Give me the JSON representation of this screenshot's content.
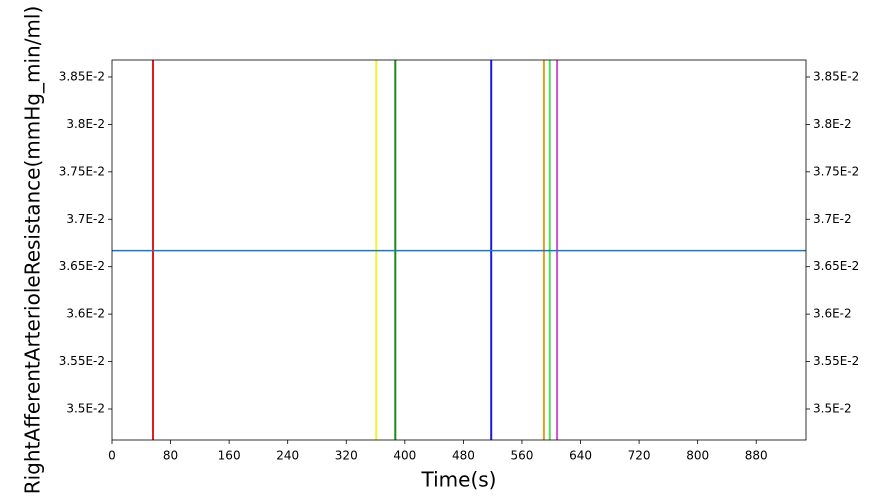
{
  "chart_data": {
    "type": "line",
    "xlabel": "Time(s)",
    "ylabel": "RightAfferentArterioleResistance(mmHg_min/ml)",
    "xlim": [
      0,
      948
    ],
    "xticks": [
      0,
      80,
      160,
      240,
      320,
      400,
      480,
      560,
      640,
      720,
      800,
      880
    ],
    "ylim": [
      0.034673,
      0.038679
    ],
    "yticks": [
      {
        "value": 0.035,
        "label": "3.5E-2"
      },
      {
        "value": 0.0355,
        "label": "3.55E-2"
      },
      {
        "value": 0.036,
        "label": "3.6E-2"
      },
      {
        "value": 0.0365,
        "label": "3.65E-2"
      },
      {
        "value": 0.037,
        "label": "3.7E-2"
      },
      {
        "value": 0.0375,
        "label": "3.75E-2"
      },
      {
        "value": 0.038,
        "label": "3.8E-2"
      },
      {
        "value": 0.0385,
        "label": "3.85E-2"
      }
    ],
    "series": [
      {
        "color": "#1f77b4",
        "x": [
          0,
          948
        ],
        "values": [
          0.03667,
          0.03667
        ]
      }
    ],
    "vlines": [
      {
        "x": 56,
        "color": "#e41a1c"
      },
      {
        "x": 361,
        "color": "#f5f032"
      },
      {
        "x": 387,
        "color": "#1a8a1a"
      },
      {
        "x": 518,
        "color": "#1a1ae0"
      },
      {
        "x": 590,
        "color": "#e0a020"
      },
      {
        "x": 598,
        "color": "#50e050"
      },
      {
        "x": 608,
        "color": "#d050d0"
      }
    ]
  }
}
